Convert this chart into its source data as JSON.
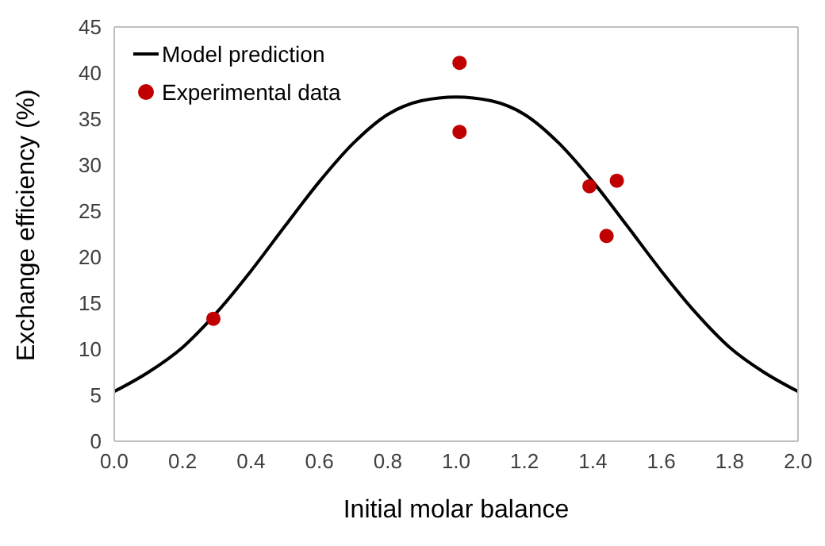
{
  "chart_data": {
    "type": "scatter",
    "xlabel": "Initial molar balance",
    "ylabel": "Exchange efficiency (%)",
    "xlim": [
      0,
      2
    ],
    "xticks": [
      {
        "value": 0,
        "label": "0.0"
      },
      {
        "value": 0.2,
        "label": "0.2"
      },
      {
        "value": 0.4,
        "label": "0.4"
      },
      {
        "value": 0.6,
        "label": "0.6"
      },
      {
        "value": 0.8,
        "label": "0.8"
      },
      {
        "value": 1,
        "label": "1.0"
      },
      {
        "value": 1.2,
        "label": "1.2"
      },
      {
        "value": 1.4,
        "label": "1.4"
      },
      {
        "value": 1.6,
        "label": "1.6"
      },
      {
        "value": 1.8,
        "label": "1.8"
      },
      {
        "value": 2,
        "label": "2.0"
      }
    ],
    "ylim": [
      0,
      45
    ],
    "yticks": [
      0,
      5,
      10,
      15,
      20,
      25,
      30,
      35,
      40,
      45
    ],
    "grid": false,
    "legend": "top left",
    "series": [
      {
        "name": "Model prediction",
        "type": "line",
        "color": "#000000",
        "marker": "none",
        "line_style": "solid",
        "x": [
          0,
          0.1,
          0.2,
          0.3,
          0.4,
          0.5,
          0.6,
          0.7,
          0.8,
          0.9,
          1,
          1.1,
          1.2,
          1.3,
          1.4,
          1.5,
          1.6,
          1.7,
          1.8,
          1.9,
          2
        ],
        "values": [
          5.4,
          7.5,
          10.2,
          14,
          18.5,
          23.4,
          28.2,
          32.4,
          35.5,
          37,
          37.4,
          37,
          35.5,
          32.4,
          28.2,
          23.4,
          18.5,
          14,
          10.2,
          7.5,
          5.4
        ]
      },
      {
        "name": "Experimental data",
        "type": "scatter",
        "color": "#c00000",
        "marker": "circle",
        "x": [
          0.29,
          1.01,
          1.01,
          1.39,
          1.44,
          1.47
        ],
        "values": [
          13.3,
          41.1,
          33.6,
          27.7,
          22.3,
          28.3
        ]
      }
    ]
  }
}
